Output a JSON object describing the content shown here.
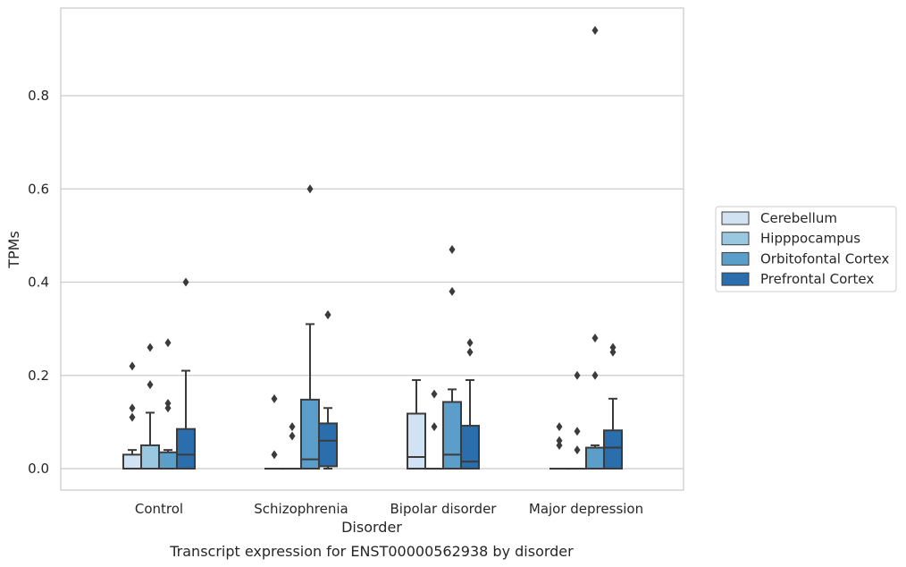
{
  "chart_data": {
    "type": "box",
    "title": "",
    "caption": "Transcript expression for ENST00000562938 by disorder",
    "xlabel": "Disorder",
    "ylabel": "TPMs",
    "ylim": [
      -0.045,
      0.99
    ],
    "yticks": [
      0.0,
      0.2,
      0.4,
      0.6,
      0.8
    ],
    "ytick_labels": [
      "0.0",
      "0.2",
      "0.4",
      "0.6",
      "0.8"
    ],
    "grid": true,
    "legend_position": "right",
    "categories": [
      "Control",
      "Schizophrenia",
      "Bipolar disorder",
      "Major depression"
    ],
    "series": [
      {
        "name": "Cerebellum",
        "color": "#d1e2f2",
        "boxes": [
          {
            "whislo": 0.0,
            "q1": 0.0,
            "med": 0.0,
            "q3": 0.03,
            "whishi": 0.04,
            "fliers": [
              0.22,
              0.13,
              0.11
            ]
          },
          {
            "whislo": 0.0,
            "q1": 0.0,
            "med": 0.0,
            "q3": 0.0,
            "whishi": 0.0,
            "fliers": [
              0.15,
              0.03
            ]
          },
          {
            "whislo": 0.0,
            "q1": 0.0,
            "med": 0.025,
            "q3": 0.118,
            "whishi": 0.19,
            "fliers": []
          },
          {
            "whislo": 0.0,
            "q1": 0.0,
            "med": 0.0,
            "q3": 0.0,
            "whishi": 0.0,
            "fliers": [
              0.09,
              0.06,
              0.05
            ]
          }
        ]
      },
      {
        "name": "Hipppocampus",
        "color": "#9ac8e0",
        "boxes": [
          {
            "whislo": 0.0,
            "q1": 0.0,
            "med": 0.0,
            "q3": 0.05,
            "whishi": 0.12,
            "fliers": [
              0.26,
              0.18
            ]
          },
          {
            "whislo": 0.0,
            "q1": 0.0,
            "med": 0.0,
            "q3": 0.0,
            "whishi": 0.0,
            "fliers": [
              0.09,
              0.07
            ]
          },
          {
            "whislo": 0.0,
            "q1": 0.0,
            "med": 0.0,
            "q3": 0.0,
            "whishi": 0.0,
            "fliers": [
              0.16,
              0.09
            ]
          },
          {
            "whislo": 0.0,
            "q1": 0.0,
            "med": 0.0,
            "q3": 0.0,
            "whishi": 0.0,
            "fliers": [
              0.08,
              0.04,
              0.2
            ]
          }
        ]
      },
      {
        "name": "Orbitofontal Cortex",
        "color": "#5a9ec9",
        "boxes": [
          {
            "whislo": 0.0,
            "q1": 0.0,
            "med": 0.0,
            "q3": 0.035,
            "whishi": 0.04,
            "fliers": [
              0.27,
              0.14,
              0.13
            ]
          },
          {
            "whislo": 0.0,
            "q1": 0.0,
            "med": 0.02,
            "q3": 0.148,
            "whishi": 0.31,
            "fliers": [
              0.6
            ]
          },
          {
            "whislo": 0.0,
            "q1": 0.0,
            "med": 0.03,
            "q3": 0.143,
            "whishi": 0.17,
            "fliers": [
              0.47,
              0.38
            ]
          },
          {
            "whislo": 0.0,
            "q1": 0.0,
            "med": 0.0,
            "q3": 0.045,
            "whishi": 0.05,
            "fliers": [
              0.94,
              0.28,
              0.2
            ]
          }
        ]
      },
      {
        "name": "Prefrontal Cortex",
        "color": "#2a6eae",
        "boxes": [
          {
            "whislo": 0.0,
            "q1": 0.0,
            "med": 0.03,
            "q3": 0.085,
            "whishi": 0.21,
            "fliers": [
              0.4
            ]
          },
          {
            "whislo": 0.0,
            "q1": 0.005,
            "med": 0.06,
            "q3": 0.097,
            "whishi": 0.13,
            "fliers": [
              0.33,
              0.33
            ]
          },
          {
            "whislo": 0.0,
            "q1": 0.0,
            "med": 0.015,
            "q3": 0.092,
            "whishi": 0.19,
            "fliers": [
              0.27,
              0.25
            ]
          },
          {
            "whislo": 0.0,
            "q1": 0.0,
            "med": 0.045,
            "q3": 0.082,
            "whishi": 0.15,
            "fliers": [
              0.26,
              0.25
            ]
          }
        ]
      }
    ]
  }
}
